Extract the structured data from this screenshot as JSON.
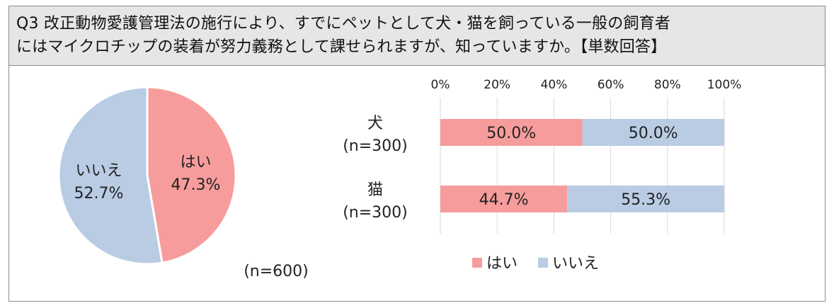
{
  "question": {
    "line1": "Q3 改正動物愛護管理法の施行により、すでにペットとして犬・猫を飼っている一般の飼育者",
    "line2": "にはマイクロチップの装着が努力義務として課せられますが、知っていますか。【単数回答】"
  },
  "colors": {
    "yes": "#f79c9c",
    "no": "#b9cce4"
  },
  "chart_data": [
    {
      "type": "pie",
      "slices": [
        {
          "label": "はい",
          "value": 47.3,
          "display": "47.3%"
        },
        {
          "label": "いいえ",
          "value": 52.7,
          "display": "52.7%"
        }
      ],
      "note": "(n=600)"
    },
    {
      "type": "bar",
      "orientation": "horizontal",
      "stacked": "100%",
      "categories": [
        "犬",
        "猫"
      ],
      "category_sub": [
        "(n=300)",
        "(n=300)"
      ],
      "series": [
        {
          "name": "はい",
          "values": [
            50.0,
            44.7
          ],
          "labels": [
            "50.0%",
            "44.7%"
          ]
        },
        {
          "name": "いいえ",
          "values": [
            50.0,
            55.3
          ],
          "labels": [
            "50.0%",
            "55.3%"
          ]
        }
      ],
      "xlim": [
        0,
        100
      ],
      "xticks": [
        "0%",
        "20%",
        "40%",
        "60%",
        "80%",
        "100%"
      ],
      "grid": true,
      "legend": "bottom"
    }
  ]
}
